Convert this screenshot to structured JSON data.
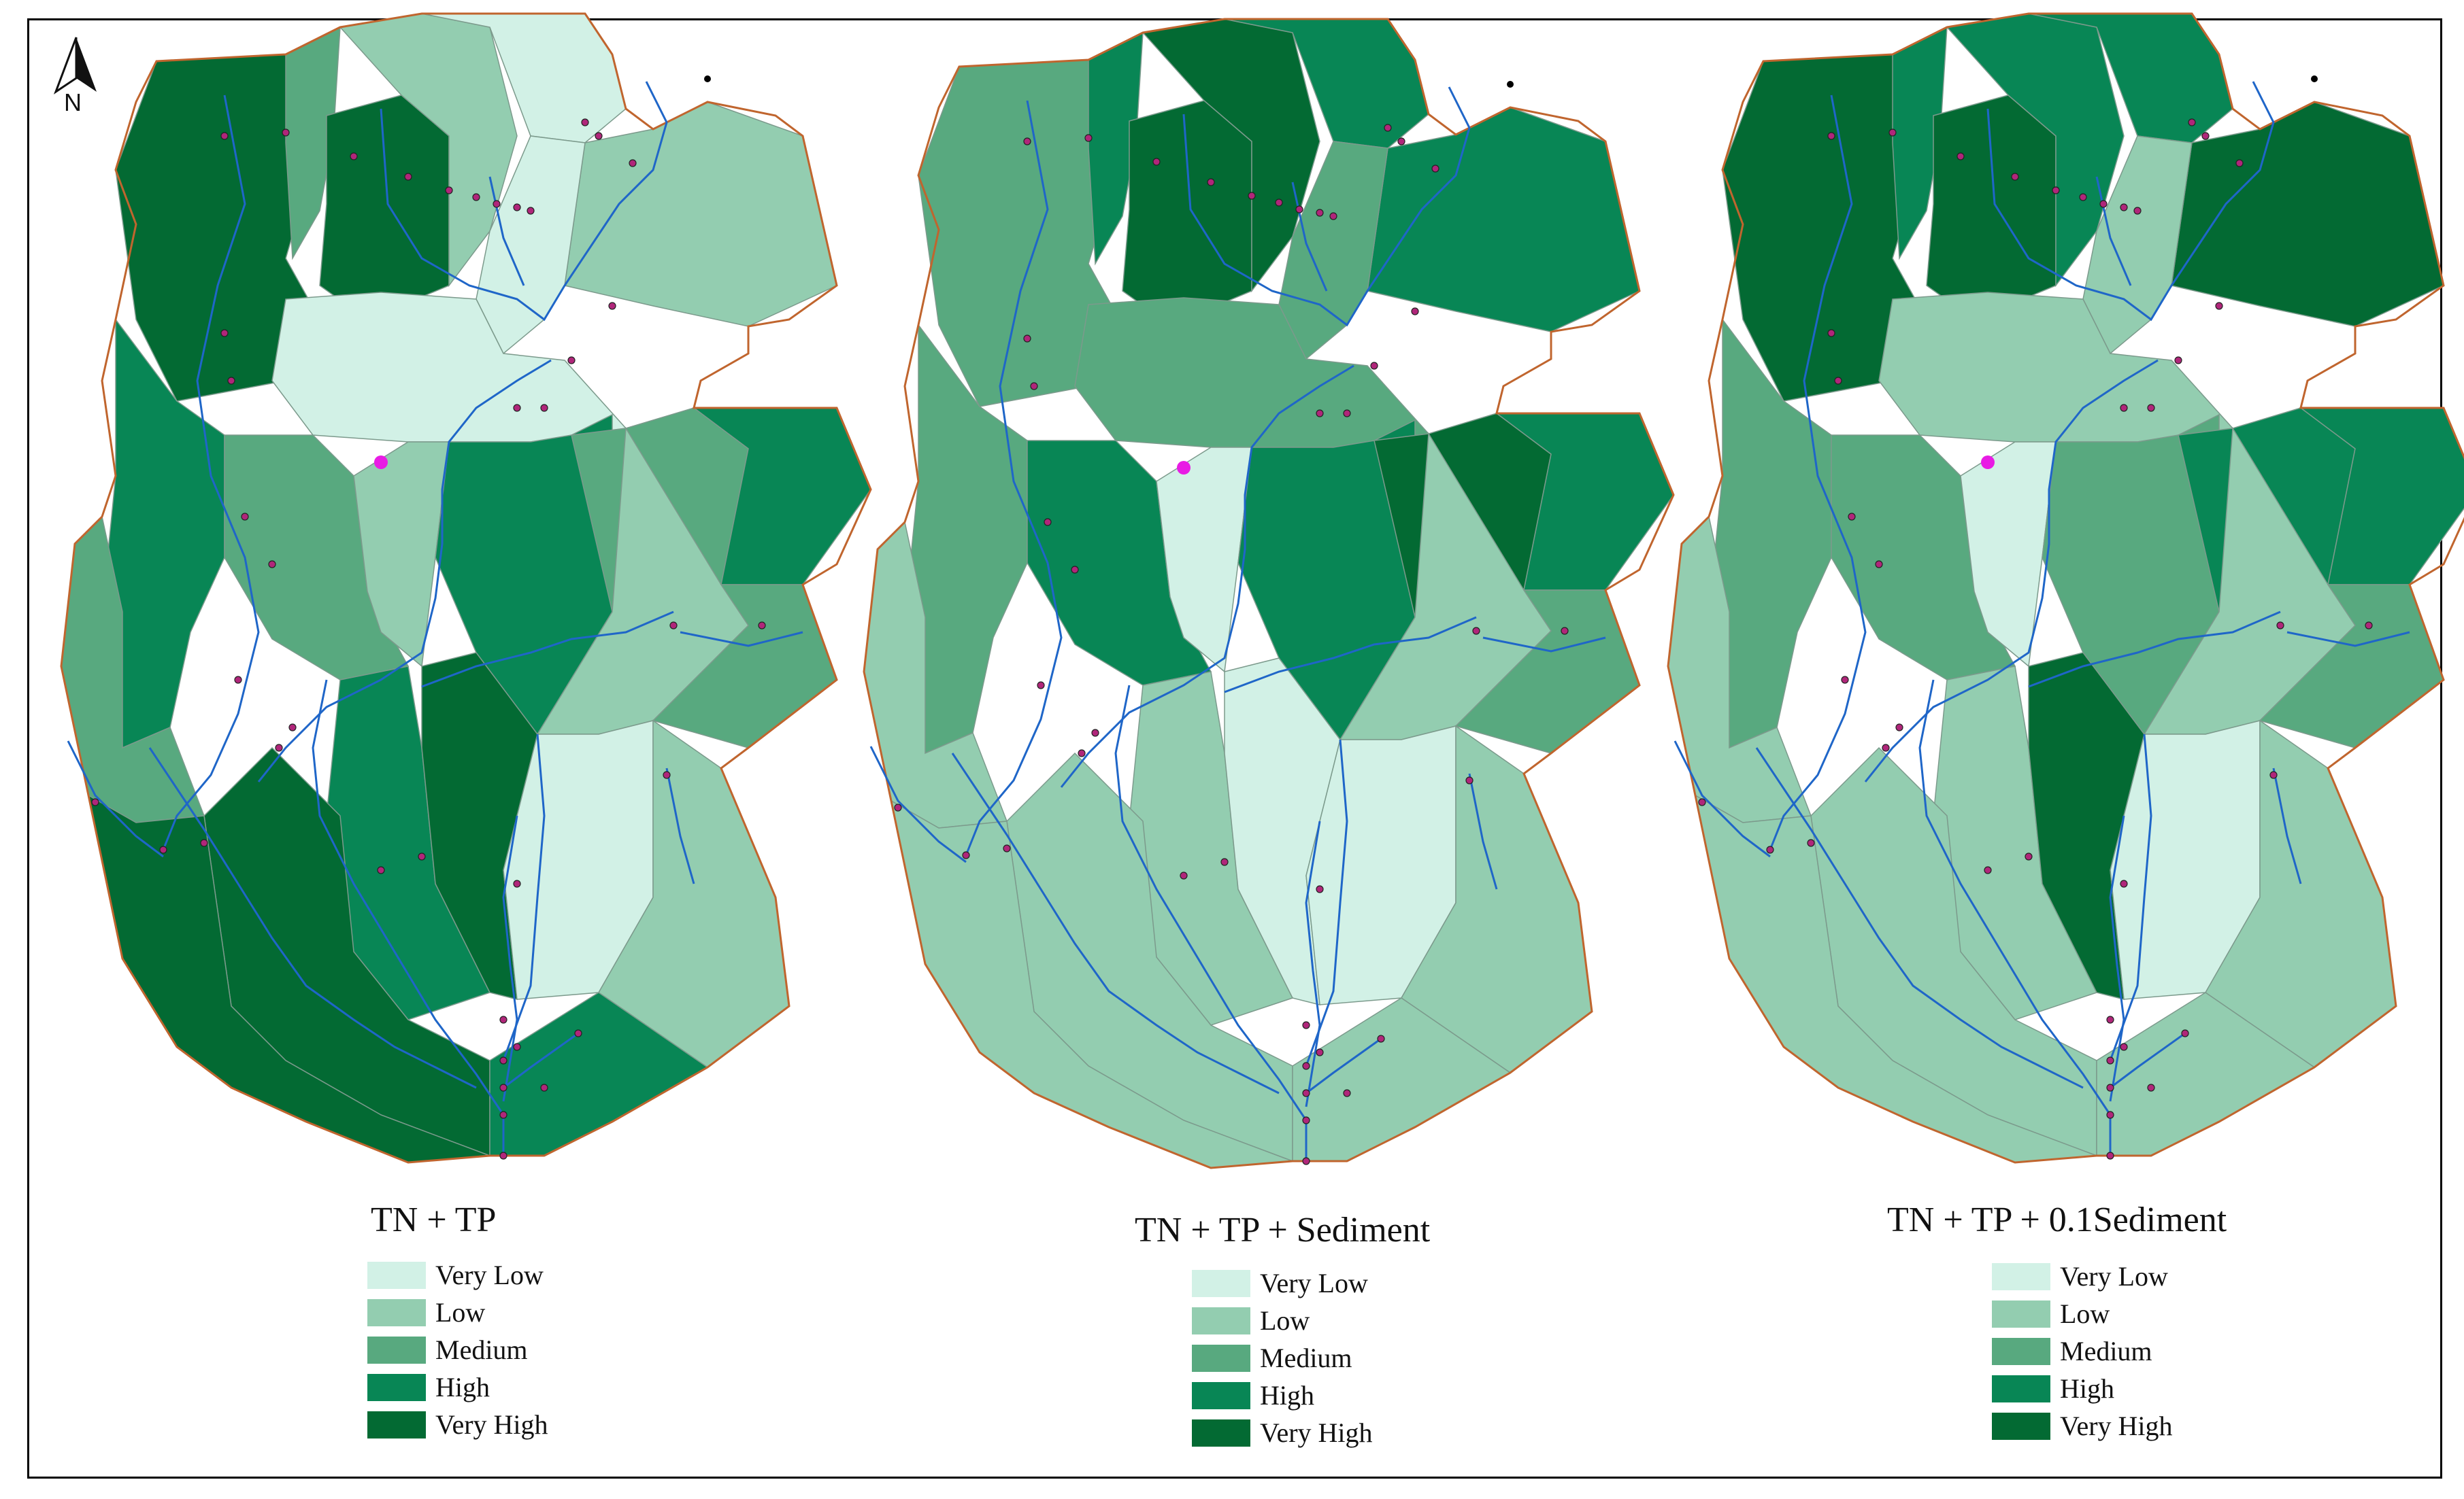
{
  "colors": {
    "very_low": "#d2f1e6",
    "low": "#93cdb0",
    "medium": "#58a97f",
    "high": "#088655",
    "very_high": "#036a33",
    "boundary": "#c0652e",
    "river": "#1f66c8",
    "outlet": "#e81ce4",
    "station": "#b0267a"
  },
  "north_arrow": {
    "label": "N"
  },
  "panels": [
    {
      "title": "TN + TP",
      "legend": [
        "Very Low",
        "Low",
        "Medium",
        "High",
        "Very High"
      ]
    },
    {
      "title": "TN + TP + Sediment",
      "legend": [
        "Very Low",
        "Low",
        "Medium",
        "High",
        "Very High"
      ]
    },
    {
      "title": "TN + TP + 0.1Sediment",
      "legend": [
        "Very Low",
        "Low",
        "Medium",
        "High",
        "Very High"
      ]
    }
  ],
  "subbasin_classes": {
    "tn_tp": [
      "very_high",
      "medium",
      "very_high",
      "low",
      "very_low",
      "low",
      "very_low",
      "very_low",
      "high",
      "medium",
      "low",
      "medium",
      "high",
      "medium",
      "high",
      "low",
      "medium",
      "high",
      "very_high",
      "very_high",
      "very_low",
      "low",
      "very_high",
      "high"
    ],
    "tn_tp_sediment": [
      "medium",
      "high",
      "very_high",
      "very_high",
      "high",
      "high",
      "medium",
      "medium",
      "medium",
      "high",
      "very_low",
      "low",
      "high",
      "very_high",
      "high",
      "low",
      "medium",
      "low",
      "very_low",
      "low",
      "very_low",
      "low",
      "low",
      "low"
    ],
    "tn_tp_01sediment": [
      "very_high",
      "high",
      "very_high",
      "high",
      "high",
      "very_high",
      "low",
      "low",
      "medium",
      "medium",
      "very_low",
      "low",
      "medium",
      "high",
      "high",
      "low",
      "medium",
      "low",
      "very_high",
      "low",
      "very_low",
      "low",
      "low",
      "low"
    ]
  }
}
